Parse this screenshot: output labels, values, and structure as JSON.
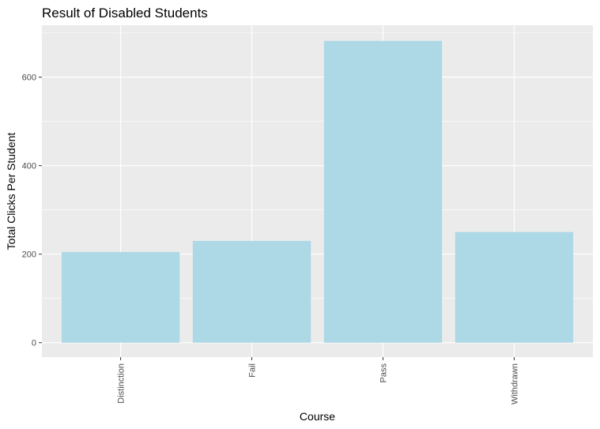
{
  "chart_data": {
    "type": "bar",
    "title": "Result of Disabled Students",
    "xlabel": "Course",
    "ylabel": "Total Clicks Per Student",
    "categories": [
      "Distinction",
      "Fail",
      "Pass",
      "Withdrawn"
    ],
    "values": [
      205,
      230,
      682,
      250
    ],
    "ylim": [
      -32.6,
      717.2
    ],
    "yticks": [
      0,
      200,
      400,
      600
    ],
    "ytick_labels": [
      "0",
      "200",
      "400",
      "600"
    ],
    "grid": true,
    "legend": "none",
    "colors": {
      "bar": "#add8e6",
      "panel_background": "#ebebeb",
      "grid": "#ffffff",
      "tick_label": "#4d4d4d"
    }
  }
}
